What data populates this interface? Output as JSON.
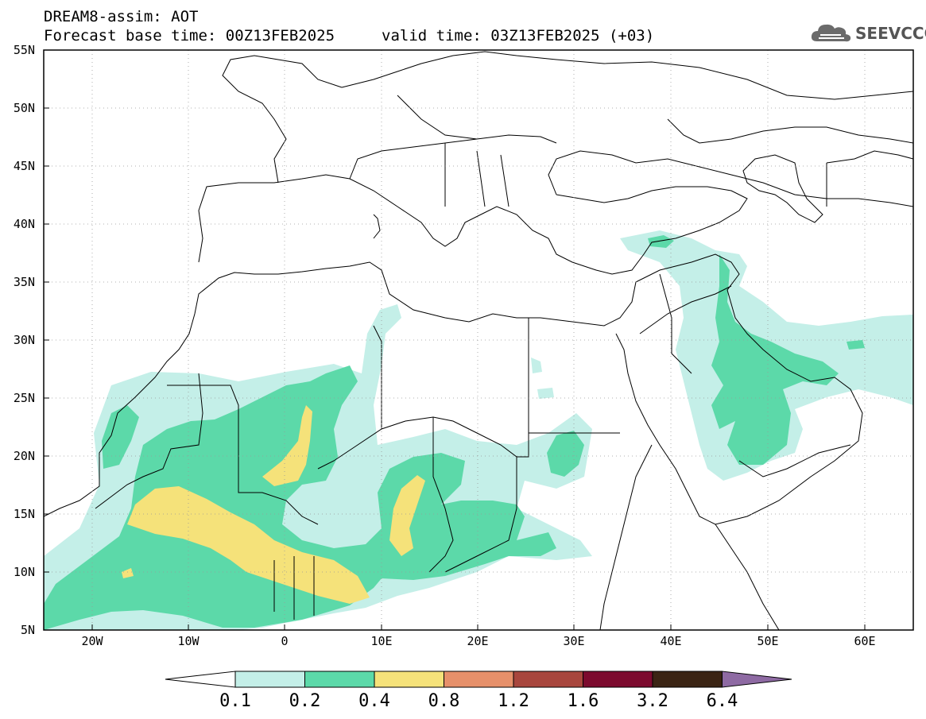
{
  "header": {
    "title": "DREAM8-assim: AOT",
    "base_time": "Forecast base time: 00Z13FEB2025",
    "valid_time": "valid time: 03Z13FEB2025 (+03)"
  },
  "logo": {
    "text": "SEEVCCC",
    "icon": "cloud-icon"
  },
  "map": {
    "lat_labels": [
      "55N",
      "50N",
      "45N",
      "40N",
      "35N",
      "30N",
      "25N",
      "20N",
      "15N",
      "10N",
      "5N"
    ],
    "lon_labels": [
      "20W",
      "10W",
      "0",
      "10E",
      "20E",
      "30E",
      "40E",
      "50E",
      "60E"
    ],
    "lon_range": [
      -25,
      65
    ],
    "lat_range": [
      5,
      55
    ],
    "gridlines": "dotted"
  },
  "colorbar": {
    "labels": [
      "0.1",
      "0.2",
      "0.4",
      "0.8",
      "1.2",
      "1.6",
      "3.2",
      "6.4"
    ],
    "colors": [
      "#ffffff",
      "#c4efe8",
      "#5cd9a9",
      "#f5e27a",
      "#e6906a",
      "#a8463d",
      "#7c0a2e",
      "#3b2414",
      "#8e6aa3"
    ]
  },
  "colors": {
    "level_0_1": "#c4efe8",
    "level_0_2": "#5cd9a9",
    "level_0_4": "#f5e27a"
  }
}
